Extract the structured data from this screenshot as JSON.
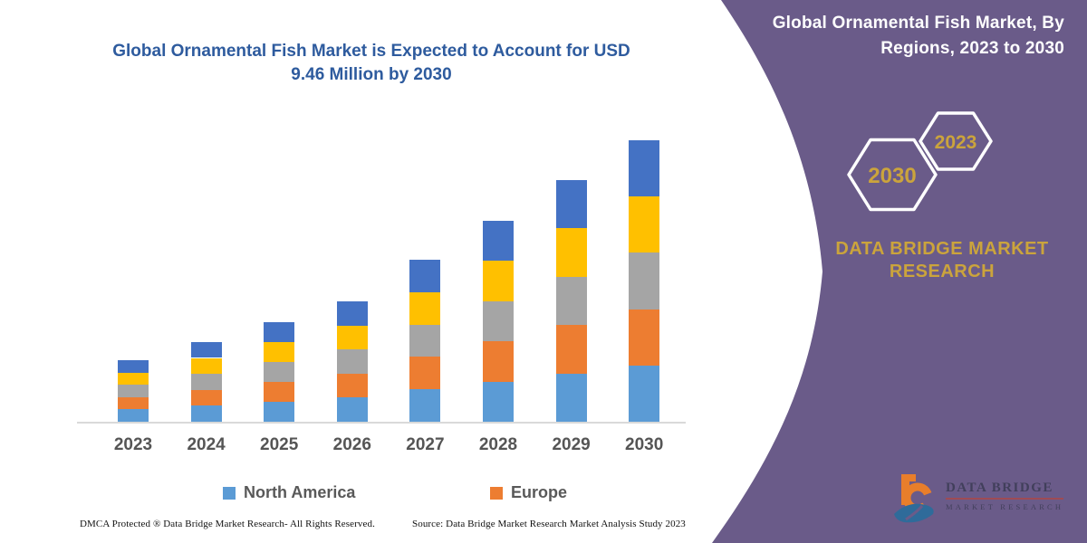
{
  "chart": {
    "title_lines": [
      "Global Ornamental Fish Market is Expected to Account for USD",
      "9.46 Million by 2030"
    ],
    "title_color": "#2E5B9E"
  },
  "chart_data": {
    "type": "stacked-bar",
    "title": "Global Ornamental Fish Market is Expected to Account for USD 9.46 Million by 2030",
    "categories": [
      "2023",
      "2024",
      "2025",
      "2026",
      "2027",
      "2028",
      "2029",
      "2030"
    ],
    "series": [
      {
        "name": "North America",
        "color": "#5B9BD5",
        "values": [
          0.414,
          0.536,
          0.669,
          0.809,
          1.089,
          1.351,
          1.624,
          1.892
        ]
      },
      {
        "name": "Europe",
        "color": "#ED7D31",
        "values": [
          0.414,
          0.536,
          0.669,
          0.809,
          1.089,
          1.351,
          1.624,
          1.892
        ]
      },
      {
        "name": "unlabeled-gray",
        "color": "#A5A5A5",
        "values": [
          0.414,
          0.536,
          0.669,
          0.809,
          1.089,
          1.351,
          1.624,
          1.892
        ]
      },
      {
        "name": "unlabeled-yellow",
        "color": "#FFC000",
        "values": [
          0.414,
          0.536,
          0.669,
          0.809,
          1.089,
          1.351,
          1.624,
          1.892
        ]
      },
      {
        "name": "unlabeled-blue",
        "color": "#4472C4",
        "values": [
          0.414,
          0.536,
          0.669,
          0.809,
          1.089,
          1.351,
          1.624,
          1.892
        ]
      }
    ],
    "totals": [
      2.07,
      2.68,
      3.35,
      4.05,
      5.44,
      6.76,
      8.12,
      9.46
    ],
    "ylim": [
      0,
      9.46
    ],
    "gridlines": false,
    "y_axis_visible": false,
    "legend_position": "bottom",
    "legend_visible_entries": [
      "North America",
      "Europe"
    ]
  },
  "legend": {
    "items": [
      {
        "label": "North America",
        "color": "#5B9BD5"
      },
      {
        "label": "Europe",
        "color": "#ED7D31"
      }
    ]
  },
  "footer": {
    "left": "DMCA Protected ® Data Bridge Market Research-  All Rights Reserved.",
    "right": "Source: Data Bridge Market Research  Market Analysis Study 2023"
  },
  "sidebar": {
    "panel_color": "#6A5B89",
    "gold_color": "#CBA43C",
    "title_line1": "Global Ornamental Fish Market, By",
    "title_line2": "Regions, 2023 to 2030",
    "hexagons": [
      {
        "label": "2030"
      },
      {
        "label": "2023"
      }
    ],
    "brand_text": "DATA BRIDGE MARKET RESEARCH",
    "logo": {
      "line1": "DATA BRIDGE",
      "line2": "MARKET RESEARCH"
    }
  }
}
